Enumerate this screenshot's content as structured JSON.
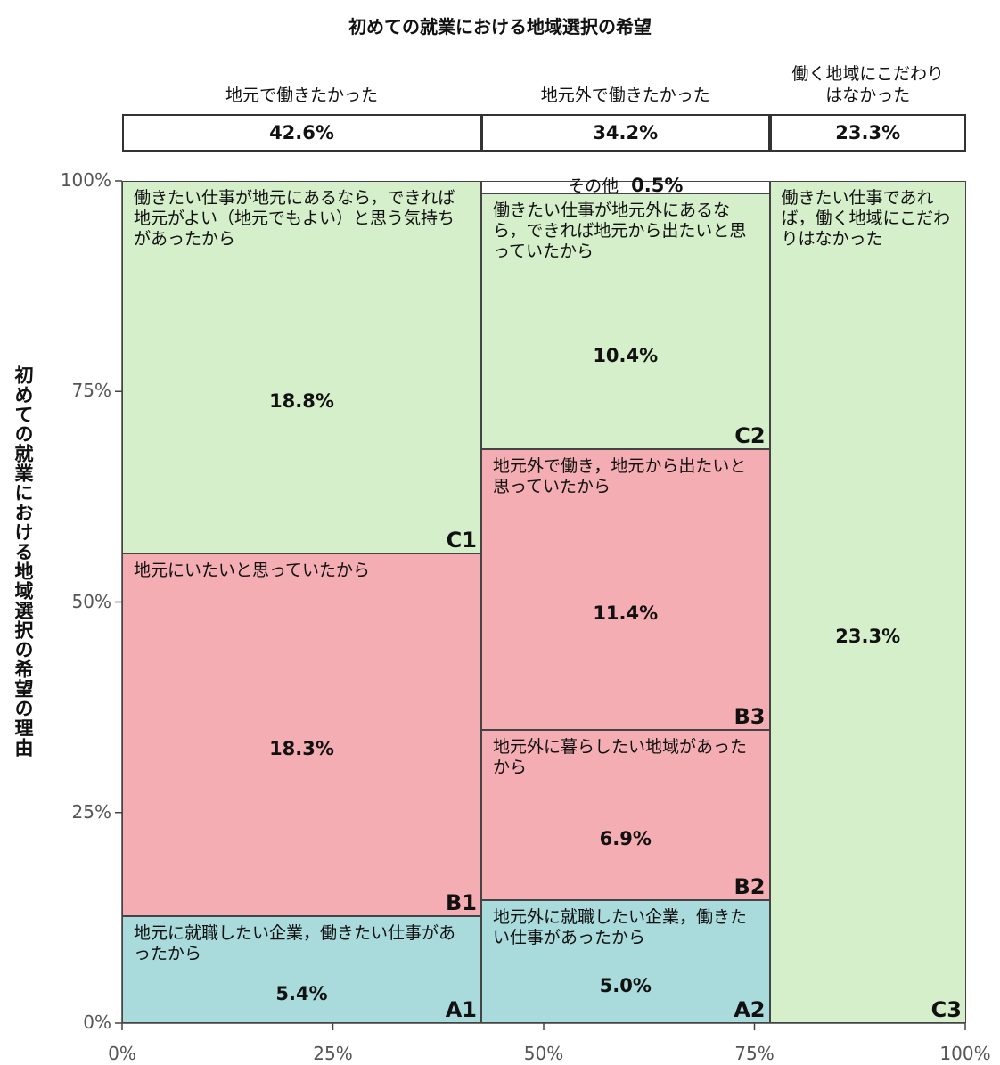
{
  "chart_data": {
    "type": "mekko",
    "title": "初めての就業における地域選択の希望",
    "y_label": "初めての就業における地域選択の希望の理由",
    "xlim": [
      0,
      100
    ],
    "ylim": [
      0,
      100
    ],
    "xticks": [
      {
        "value": 0,
        "label": "0%"
      },
      {
        "value": 25,
        "label": "25%"
      },
      {
        "value": 50,
        "label": "50%"
      },
      {
        "value": 75,
        "label": "75%"
      },
      {
        "value": 100,
        "label": "100%"
      }
    ],
    "yticks": [
      {
        "value": 0,
        "label": "0%"
      },
      {
        "value": 25,
        "label": "25%"
      },
      {
        "value": 50,
        "label": "50%"
      },
      {
        "value": 75,
        "label": "75%"
      },
      {
        "value": 100,
        "label": "100%"
      }
    ],
    "columns": [
      {
        "name": "地元で働きたかった",
        "value": 42.6,
        "value_label": "42.6%",
        "segments": [
          {
            "code": "A1",
            "label": "地元に就職したい企業，働きたい仕事があったから",
            "value": 5.4,
            "value_label": "5.4%",
            "color": "#a9dadc"
          },
          {
            "code": "B1",
            "label": "地元にいたいと思っていたから",
            "value": 18.3,
            "value_label": "18.3%",
            "color": "#f4aeb3"
          },
          {
            "code": "C1",
            "label": "働きたい仕事が地元にあるなら，できれば地元がよい（地元でもよい）と思う気持ちがあったから",
            "value": 18.8,
            "value_label": "18.8%",
            "color": "#d5efca"
          }
        ]
      },
      {
        "name": "地元外で働きたかった",
        "value": 34.2,
        "value_label": "34.2%",
        "segments": [
          {
            "code": "A2",
            "label": "地元外に就職したい企業，働きたい仕事があったから",
            "value": 5.0,
            "value_label": "5.0%",
            "color": "#a9dadc"
          },
          {
            "code": "B2",
            "label": "地元外に暮らしたい地域があったから",
            "value": 6.9,
            "value_label": "6.9%",
            "color": "#f4aeb3"
          },
          {
            "code": "B3",
            "label": "地元外で働き，地元から出たいと思っていたから",
            "value": 11.4,
            "value_label": "11.4%",
            "color": "#f4aeb3"
          },
          {
            "code": "C2",
            "label": "働きたい仕事が地元外にあるなら，できれば地元から出たいと思っていたから",
            "value": 10.4,
            "value_label": "10.4%",
            "color": "#d5efca"
          },
          {
            "label": "その他",
            "value": 0.5,
            "value_label": "0.5%",
            "color": "#ffffff"
          }
        ]
      },
      {
        "name": "働く地域にこだわりはなかった",
        "value": 23.3,
        "value_label": "23.3%",
        "segments": [
          {
            "code": "C3",
            "label": "働きたい仕事であれば，働く地域にこだわりはなかった",
            "value": 23.3,
            "value_label": "23.3%",
            "color": "#d5efca"
          }
        ]
      }
    ]
  }
}
